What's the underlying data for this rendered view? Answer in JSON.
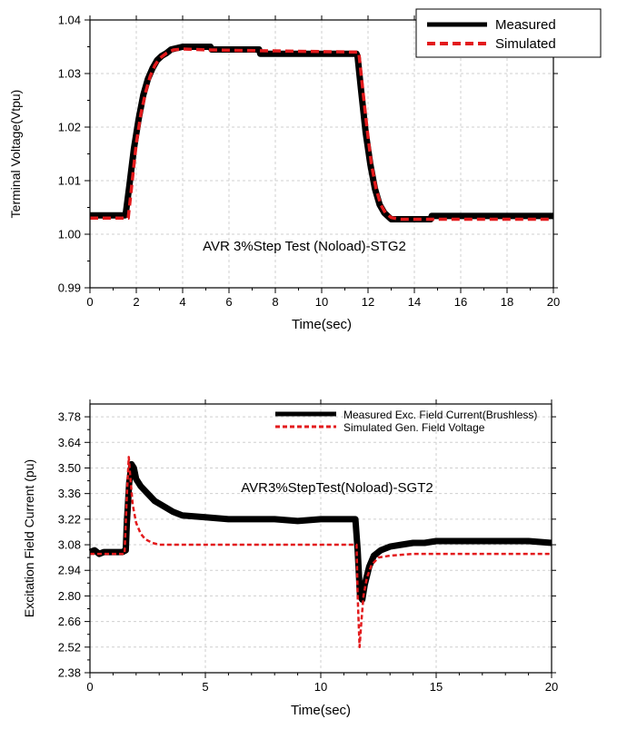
{
  "chart_data": [
    {
      "type": "line",
      "title": "",
      "annotation": "AVR 3%Step Test (Noload)-STG2",
      "xlabel": "Time(sec)",
      "ylabel": "Terminal Voltage(Vtpu)",
      "xlim": [
        0,
        20
      ],
      "ylim": [
        0.99,
        1.04
      ],
      "xticks": [
        "0",
        "2",
        "4",
        "6",
        "8",
        "10",
        "12",
        "14",
        "16",
        "18",
        "20"
      ],
      "yticks": [
        "0.99",
        "1.00",
        "1.01",
        "1.02",
        "1.03",
        "1.04"
      ],
      "grid": true,
      "legend_position": "top-right",
      "series": [
        {
          "name": "Measured",
          "color": "#000000",
          "style": "solid",
          "x": [
            0,
            1.5,
            1.55,
            1.7,
            1.9,
            2.1,
            2.3,
            2.5,
            2.7,
            2.9,
            3.1,
            3.3,
            3.5,
            4.0,
            5.2,
            5.25,
            7.3,
            7.35,
            11.5,
            11.55,
            11.7,
            11.9,
            12.1,
            12.3,
            12.5,
            12.7,
            13.0,
            14.7,
            14.75,
            20
          ],
          "y": [
            1.0035,
            1.0035,
            1.004,
            1.009,
            1.016,
            1.0215,
            1.026,
            1.029,
            1.031,
            1.0325,
            1.0333,
            1.0338,
            1.0345,
            1.035,
            1.035,
            1.0345,
            1.0345,
            1.0337,
            1.0337,
            1.0332,
            1.027,
            1.019,
            1.013,
            1.0085,
            1.0055,
            1.004,
            1.0028,
            1.0028,
            1.0034,
            1.0034
          ]
        },
        {
          "name": "Simulated",
          "color": "#e31a1c",
          "style": "dashed",
          "x": [
            0,
            1.65,
            1.8,
            2.0,
            2.2,
            2.4,
            2.6,
            2.8,
            3.0,
            3.3,
            3.6,
            4.0,
            5.0,
            11.6,
            11.75,
            11.95,
            12.15,
            12.35,
            12.55,
            12.75,
            13.0,
            13.4,
            20
          ],
          "y": [
            1.003,
            1.003,
            1.009,
            1.017,
            1.0225,
            1.0265,
            1.0295,
            1.0315,
            1.0328,
            1.0338,
            1.0344,
            1.0346,
            1.0344,
            1.034,
            1.028,
            1.02,
            1.013,
            1.0085,
            1.0055,
            1.004,
            1.0031,
            1.0028,
            1.0028
          ]
        }
      ]
    },
    {
      "type": "line",
      "title": "",
      "annotation": "AVR3%StepTest(Noload)-SGT2",
      "xlabel": "Time(sec)",
      "ylabel": "Excitation Field Current (pu)",
      "xlim": [
        0,
        20
      ],
      "ylim": [
        2.38,
        3.85
      ],
      "xticks": [
        "0",
        "5",
        "10",
        "15",
        "20"
      ],
      "yticks": [
        "2.38",
        "2.52",
        "2.66",
        "2.80",
        "2.94",
        "3.08",
        "3.22",
        "3.36",
        "3.50",
        "3.64",
        "3.78"
      ],
      "grid": true,
      "legend_position": "top-right",
      "series": [
        {
          "name": "Measured Exc. Field Current(Brushless)",
          "color": "#000000",
          "style": "solid",
          "x": [
            0,
            0.2,
            0.4,
            0.6,
            0.8,
            1.0,
            1.2,
            1.4,
            1.55,
            1.6,
            1.7,
            1.8,
            1.9,
            2.0,
            2.2,
            2.5,
            2.8,
            3.2,
            3.6,
            4.0,
            5.0,
            6.0,
            7.0,
            8.0,
            9.0,
            10.0,
            11.0,
            11.5,
            11.6,
            11.7,
            11.8,
            11.9,
            12.1,
            12.3,
            12.6,
            13.0,
            13.5,
            14.0,
            14.5,
            15.0,
            16.0,
            17.0,
            18.0,
            19.0,
            20.0
          ],
          "y": [
            3.04,
            3.05,
            3.03,
            3.04,
            3.04,
            3.04,
            3.04,
            3.04,
            3.05,
            3.2,
            3.42,
            3.52,
            3.5,
            3.44,
            3.4,
            3.36,
            3.32,
            3.29,
            3.26,
            3.24,
            3.23,
            3.22,
            3.22,
            3.22,
            3.21,
            3.22,
            3.22,
            3.22,
            3.05,
            2.8,
            2.78,
            2.86,
            2.96,
            3.02,
            3.05,
            3.07,
            3.08,
            3.09,
            3.09,
            3.1,
            3.1,
            3.1,
            3.1,
            3.1,
            3.09
          ]
        },
        {
          "name": "Simulated Gen. Field Voltage",
          "color": "#e31a1c",
          "style": "dashed",
          "x": [
            0,
            1.5,
            1.6,
            1.68,
            1.75,
            1.85,
            2.0,
            2.2,
            2.4,
            2.7,
            3.0,
            3.5,
            4.0,
            11.55,
            11.6,
            11.68,
            11.75,
            11.85,
            12.0,
            12.2,
            12.5,
            13.0,
            14.0,
            20.0
          ],
          "y": [
            3.03,
            3.03,
            3.35,
            3.56,
            3.45,
            3.3,
            3.2,
            3.14,
            3.11,
            3.09,
            3.08,
            3.08,
            3.08,
            3.08,
            2.8,
            2.52,
            2.64,
            2.8,
            2.9,
            2.97,
            3.01,
            3.02,
            3.03,
            3.03
          ]
        }
      ]
    }
  ]
}
